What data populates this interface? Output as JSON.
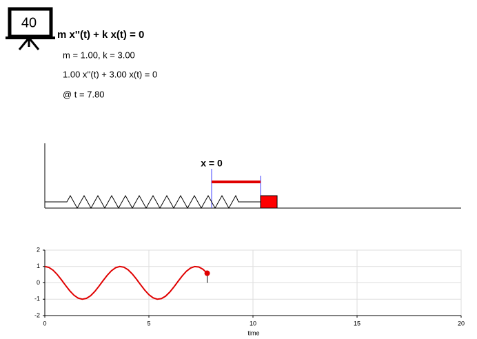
{
  "header": {
    "badge": "40",
    "equation": "m x''(t) + k x(t) = 0",
    "params": "m = 1.00, k = 3.00",
    "instance": "1.00 x''(t) + 3.00 x(t) = 0",
    "time": "@ t = 7.80"
  },
  "spring": {
    "label": "x = 0",
    "displacement": 0.587
  },
  "chart_data": {
    "type": "line",
    "x_label": "time",
    "x": [
      0,
      0.2,
      0.4,
      0.6,
      0.8,
      1.0,
      1.2,
      1.4,
      1.6,
      1.8,
      2.0,
      2.2,
      2.4,
      2.6,
      2.8,
      3.0,
      3.2,
      3.4,
      3.6,
      3.8,
      4.0,
      4.2,
      4.4,
      4.6,
      4.8,
      5.0,
      5.2,
      5.4,
      5.6,
      5.8,
      6.0,
      6.2,
      6.4,
      6.6,
      6.8,
      7.0,
      7.2,
      7.4,
      7.6,
      7.8
    ],
    "series": [
      {
        "color": "#e00000",
        "values": [
          1,
          0.9406,
          0.7694,
          0.5064,
          0.1842,
          -0.1606,
          -0.4863,
          -0.7543,
          -0.9326,
          -0.9999,
          -0.9484,
          -0.7877,
          -0.5306,
          -0.2085,
          0.1369,
          0.4647,
          0.7381,
          0.9233,
          0.9989,
          0.9557,
          0.799,
          0.5471,
          0.231,
          -0.1131,
          -0.4431,
          -0.722,
          -0.9143,
          -0.9975,
          -0.9638,
          -0.8162,
          -0.569,
          -0.2542,
          0.0894,
          0.4224,
          0.7049,
          0.9039,
          0.9954,
          0.9687,
          0.827,
          0.5874
        ]
      }
    ],
    "xlim": [
      0,
      20
    ],
    "ylim": [
      -2,
      2
    ],
    "xticks": [
      0,
      5,
      10,
      15,
      20
    ],
    "yticks": [
      -2,
      -1,
      0,
      1,
      2
    ],
    "grid": true
  }
}
